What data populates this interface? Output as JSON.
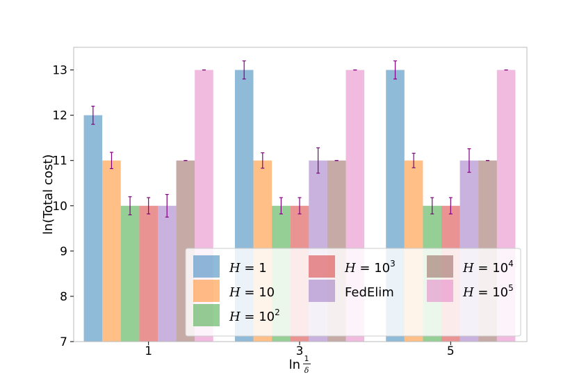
{
  "chart_data": {
    "type": "bar",
    "title": "",
    "xlabel": "ln 1/δ",
    "xlabel_parts": {
      "prefix": "ln",
      "num": "1",
      "den": "δ"
    },
    "ylabel": "ln(Total cost)",
    "ylim": [
      7,
      13.5
    ],
    "yticks": [
      "7",
      "8",
      "9",
      "10",
      "11",
      "12",
      "13"
    ],
    "grid": false,
    "legend_position": "lower-right",
    "legend_columns": 3,
    "categories": [
      "1",
      "3",
      "5"
    ],
    "series": [
      {
        "name": "H = 1",
        "label_base": "H = 1",
        "label_sup": "",
        "color": "#1f77b4",
        "values": [
          12,
          13,
          13
        ],
        "errors": [
          0.2,
          0.2,
          0.2
        ]
      },
      {
        "name": "H = 10",
        "label_base": "H = 10",
        "label_sup": "",
        "color": "#ff7f0e",
        "values": [
          11,
          11,
          11
        ],
        "errors": [
          0.18,
          0.17,
          0.16
        ]
      },
      {
        "name": "H = 10^2",
        "label_base": "H = 10",
        "label_sup": "2",
        "color": "#2ca02c",
        "values": [
          10,
          10,
          10
        ],
        "errors": [
          0.2,
          0.18,
          0.18
        ]
      },
      {
        "name": "H = 10^3",
        "label_base": "H = 10",
        "label_sup": "3",
        "color": "#d62728",
        "values": [
          10,
          10,
          10
        ],
        "errors": [
          0.18,
          0.18,
          0.18
        ]
      },
      {
        "name": "FedElim",
        "label_base": "FedElim",
        "label_sup": "",
        "color": "#9467bd",
        "values": [
          10,
          11,
          11
        ],
        "errors": [
          0.25,
          0.28,
          0.26
        ]
      },
      {
        "name": "H = 10^4",
        "label_base": "H = 10",
        "label_sup": "4",
        "color": "#8c564b",
        "values": [
          11,
          11,
          11
        ],
        "errors": [
          0.0,
          0.0,
          0.0
        ]
      },
      {
        "name": "H = 10^5",
        "label_base": "H = 10",
        "label_sup": "5",
        "color": "#e377c2",
        "values": [
          13,
          13,
          13
        ],
        "errors": [
          0.0,
          0.0,
          0.0
        ]
      }
    ],
    "bar_alpha": 0.5,
    "errorbar_color": "#800080"
  }
}
